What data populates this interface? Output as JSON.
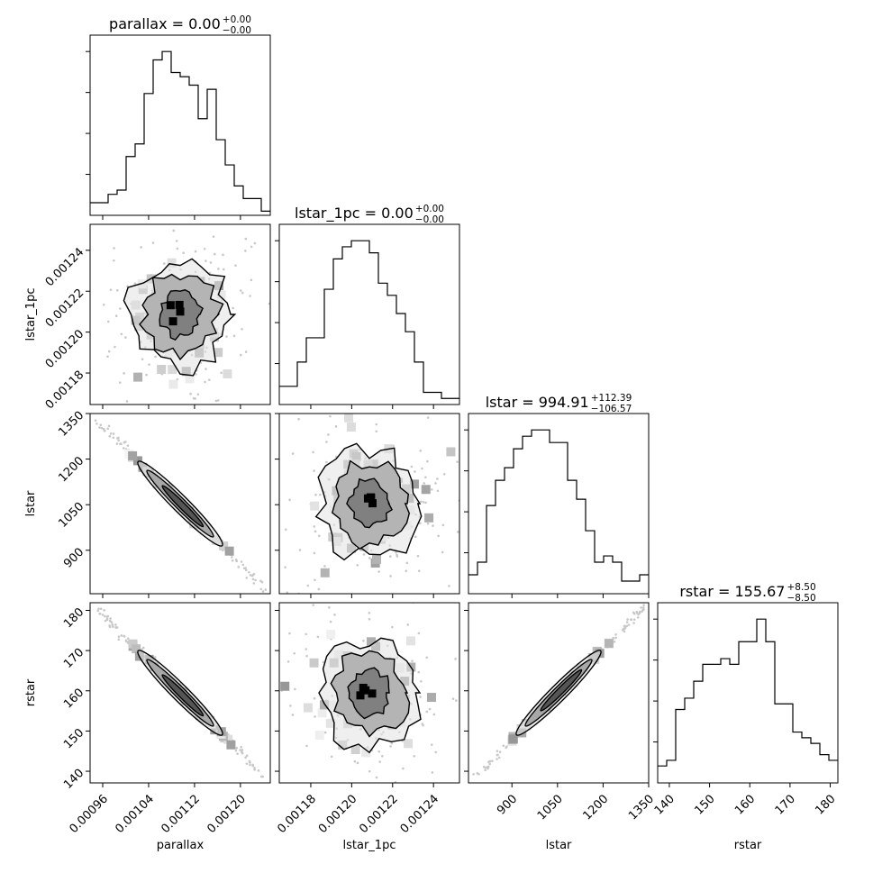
{
  "chart_data": {
    "type": "corner",
    "parameters": [
      "parallax",
      "lstar_1pc",
      "lstar",
      "rstar"
    ],
    "titles": [
      {
        "param": "parallax",
        "text": "parallax = 0.00",
        "plus": "+0.00",
        "minus": "−0.00"
      },
      {
        "param": "lstar_1pc",
        "text": "lstar_1pc = 0.00",
        "plus": "+0.00",
        "minus": "−0.00"
      },
      {
        "param": "lstar",
        "text": "lstar = 994.91",
        "plus": "+112.39",
        "minus": "−106.57"
      },
      {
        "param": "rstar",
        "text": "rstar = 155.67",
        "plus": "+8.50",
        "minus": "−8.50"
      }
    ],
    "axes": {
      "parallax": {
        "label": "parallax",
        "range": [
          0.000938,
          0.001252
        ],
        "ticks": [
          0.00096,
          0.00104,
          0.00112,
          0.0012
        ],
        "tick_labels": [
          "0.00096",
          "0.00104",
          "0.00112",
          "0.00120"
        ]
      },
      "lstar_1pc": {
        "label": "lstar_1pc",
        "range": [
          0.0011646,
          0.0012527
        ],
        "ticks": [
          0.00118,
          0.0012,
          0.00122,
          0.00124
        ],
        "tick_labels": [
          "0.00118",
          "0.00120",
          "0.00122",
          "0.00124"
        ]
      },
      "lstar": {
        "label": "lstar",
        "range": [
          757,
          1350
        ],
        "ticks": [
          900,
          1050,
          1200,
          1350
        ],
        "tick_labels": [
          "900",
          "1050",
          "1200",
          "1350"
        ]
      },
      "rstar": {
        "label": "rstar",
        "range": [
          137.1,
          181.9
        ],
        "ticks": [
          140,
          150,
          160,
          170,
          180
        ],
        "tick_labels": [
          "140",
          "150",
          "160",
          "170",
          "180"
        ]
      }
    },
    "histograms": [
      {
        "param": "parallax",
        "counts": [
          3,
          3,
          5,
          6,
          14,
          17,
          29,
          37,
          39,
          34,
          33,
          31,
          23,
          30,
          18,
          12,
          7,
          4,
          4,
          1
        ]
      },
      {
        "param": "lstar_1pc",
        "counts": [
          3,
          3,
          7,
          11,
          11,
          19,
          24,
          26,
          27,
          27,
          25,
          20,
          18,
          15,
          12,
          7,
          2,
          2,
          1,
          1
        ]
      },
      {
        "param": "lstar",
        "counts": [
          3,
          5,
          14,
          18,
          20,
          23,
          25,
          26,
          26,
          24,
          24,
          18,
          15,
          10,
          5,
          6,
          5,
          2,
          2,
          3
        ]
      },
      {
        "param": "rstar",
        "counts": [
          3,
          4,
          13,
          15,
          18,
          21,
          21,
          22,
          21,
          25,
          25,
          29,
          25,
          14,
          14,
          9,
          8,
          7,
          5,
          4
        ]
      }
    ],
    "correlations": [
      {
        "x": "parallax",
        "y": "lstar_1pc",
        "corr": 0.0
      },
      {
        "x": "parallax",
        "y": "lstar",
        "corr": -0.99
      },
      {
        "x": "lstar_1pc",
        "y": "lstar",
        "corr": 0.0
      },
      {
        "x": "parallax",
        "y": "rstar",
        "corr": -0.99
      },
      {
        "x": "lstar_1pc",
        "y": "rstar",
        "corr": 0.0
      },
      {
        "x": "lstar",
        "y": "rstar",
        "corr": 0.99
      }
    ]
  }
}
